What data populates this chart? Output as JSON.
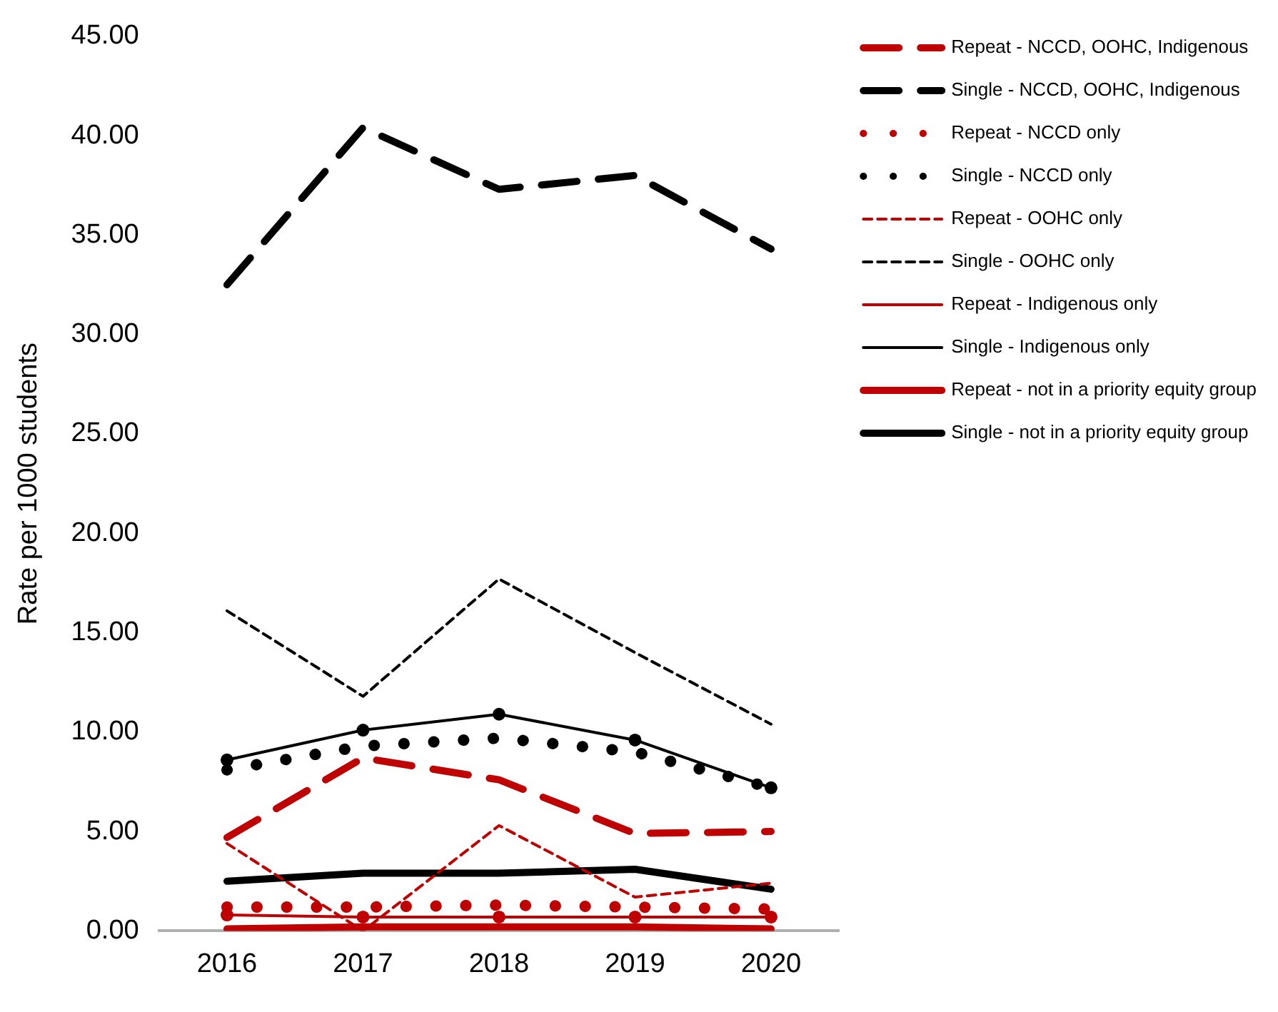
{
  "chart_data": {
    "type": "line",
    "ylabel": "Rate per 1000 students",
    "categories": [
      "2016",
      "2017",
      "2018",
      "2019",
      "2020"
    ],
    "ylim": [
      0,
      45
    ],
    "yticks": [
      {
        "value": 0,
        "label": "0.00"
      },
      {
        "value": 5,
        "label": "5.00"
      },
      {
        "value": 10,
        "label": "10.00"
      },
      {
        "value": 15,
        "label": "15.00"
      },
      {
        "value": 20,
        "label": "20.00"
      },
      {
        "value": 25,
        "label": "25.00"
      },
      {
        "value": 30,
        "label": "30.00"
      },
      {
        "value": 35,
        "label": "35.00"
      },
      {
        "value": 40,
        "label": "40.00"
      },
      {
        "value": 45,
        "label": "45.00"
      }
    ],
    "grid": false,
    "legend": "right",
    "marker": "none",
    "series": [
      {
        "name": "Repeat - NCCD, OOHC, Indigenous",
        "color": "#c00000",
        "line_style": "dashed",
        "values": [
          4.7,
          8.7,
          7.6,
          4.9,
          5.0
        ]
      },
      {
        "name": "Single - NCCD, OOHC, Indigenous",
        "color": "#000000",
        "line_style": "dashed",
        "values": [
          32.5,
          40.4,
          37.3,
          38.0,
          34.3
        ]
      },
      {
        "name": "Repeat - NCCD only",
        "color": "#c00000",
        "line_style": "dotted",
        "values": [
          1.2,
          1.2,
          1.3,
          1.2,
          1.1
        ]
      },
      {
        "name": "Single - NCCD only",
        "color": "#000000",
        "line_style": "dotted",
        "values": [
          8.1,
          9.3,
          9.7,
          9.0,
          7.2
        ]
      },
      {
        "name": "Repeat - OOHC only",
        "color": "#c00000",
        "line_style": "dashed",
        "values": [
          4.4,
          0.0,
          5.3,
          1.7,
          2.4
        ]
      },
      {
        "name": "Single - OOHC only",
        "color": "#000000",
        "line_style": "dashed",
        "values": [
          16.1,
          11.8,
          17.7,
          14.0,
          10.4
        ]
      },
      {
        "name": "Repeat - Indigenous only",
        "color": "#c00000",
        "line_style": "solid",
        "marker": "circle",
        "values": [
          0.8,
          0.7,
          0.7,
          0.7,
          0.7
        ]
      },
      {
        "name": "Single - Indigenous only",
        "color": "#000000",
        "line_style": "solid",
        "marker": "circle",
        "values": [
          8.6,
          10.1,
          10.9,
          9.6,
          7.2
        ]
      },
      {
        "name": "Repeat - not in a priority equity group",
        "color": "#c00000",
        "line_style": "solid",
        "values": [
          0.1,
          0.2,
          0.2,
          0.2,
          0.1
        ]
      },
      {
        "name": "Single - not in a priority equity group",
        "color": "#000000",
        "line_style": "solid",
        "values": [
          2.5,
          2.9,
          2.9,
          3.1,
          2.1
        ]
      }
    ]
  }
}
